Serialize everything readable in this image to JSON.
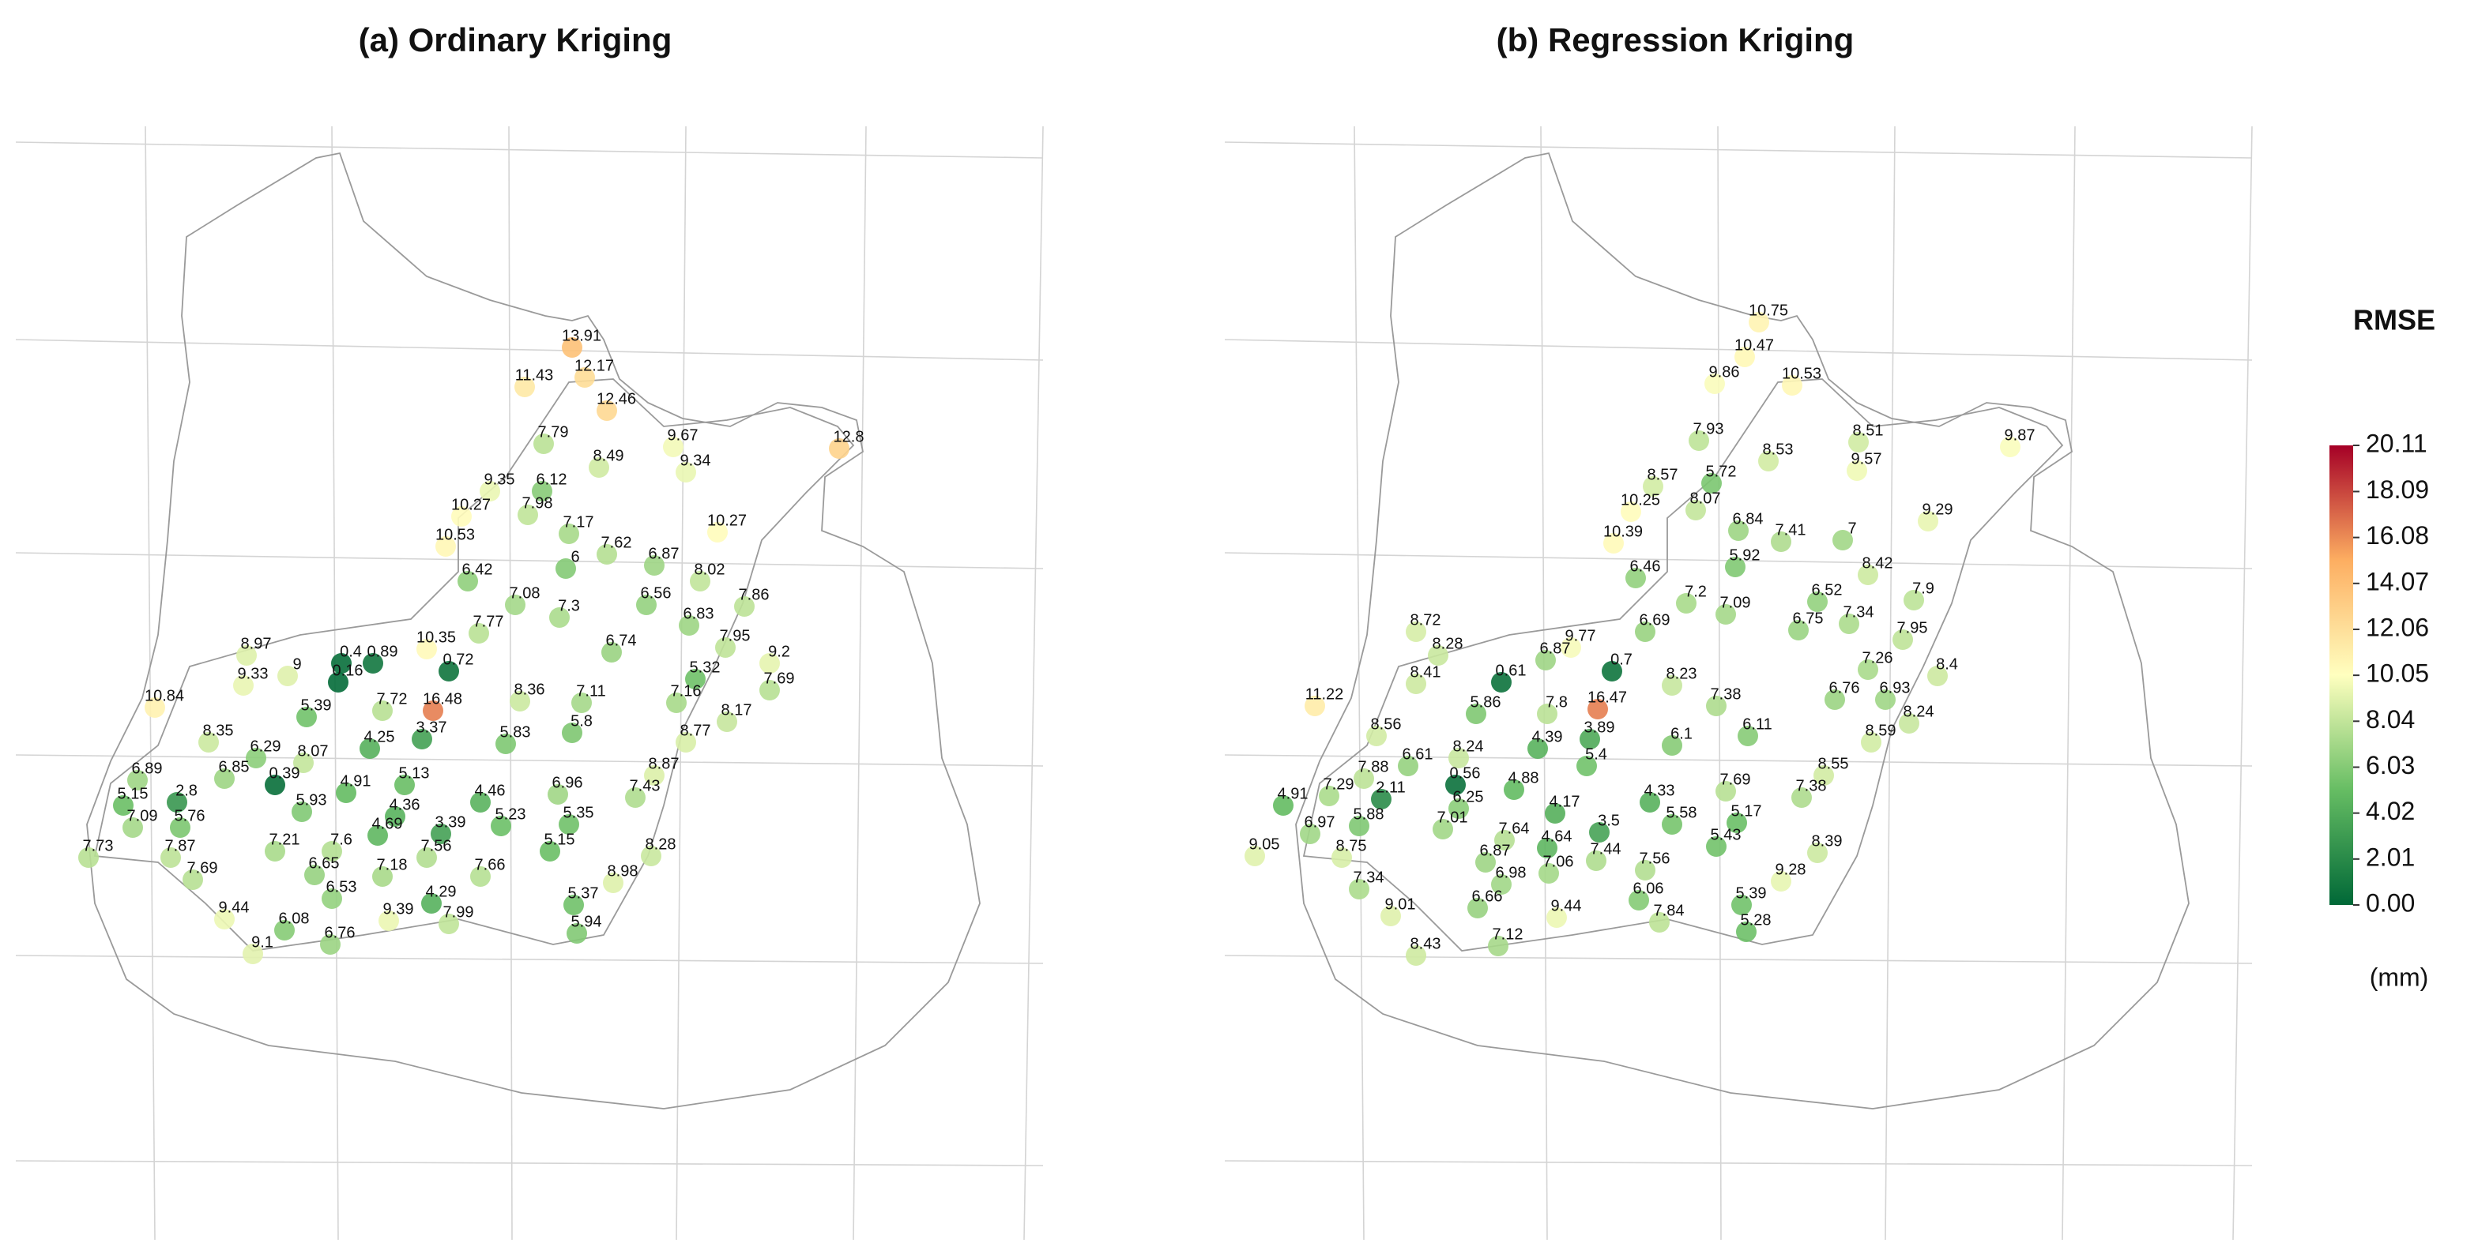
{
  "panels": [
    {
      "title": "(a) Ordinary Kriging",
      "values": [
        13.91,
        11.43,
        12.17,
        12.46,
        12.8,
        9.67,
        9.34,
        7.79,
        8.49,
        9.35,
        6.12,
        7.98,
        10.27,
        10.27,
        7.17,
        10.53,
        7.62,
        6.87,
        6,
        6.42,
        8.02,
        7.08,
        7.3,
        6.56,
        7.86,
        6.83,
        7.77,
        8.97,
        9.33,
        9,
        0.4,
        0.89,
        0.16,
        10.35,
        0.72,
        6.74,
        7.95,
        9.2,
        5.32,
        7.69,
        10.84,
        7.72,
        16.48,
        8.36,
        7.11,
        7.16,
        8.35,
        5.39,
        3.37,
        4.25,
        5.83,
        5.8,
        8.17,
        8.77,
        6.29,
        8.07,
        6.85,
        0.39,
        6.89,
        5.93,
        4.91,
        5.13,
        8.87,
        7.43,
        2.8,
        5.15,
        6.96,
        4.46,
        4.36,
        7.09,
        5.76,
        5.23,
        5.35,
        4.69,
        3.39,
        7.21,
        7.6,
        7.56,
        5.15,
        8.28,
        7.73,
        7.87,
        6.65,
        7.18,
        7.66,
        8.98,
        7.69,
        6.53,
        5.37,
        4.29,
        9.44,
        9.39,
        7.99,
        6.08,
        5.94,
        9.1,
        6.76
      ]
    },
    {
      "title": "(b) Regression Kriging",
      "values": [
        10.75,
        10.47,
        9.86,
        10.53,
        9.87,
        7.93,
        8.51,
        8.53,
        9.57,
        8.57,
        5.72,
        10.25,
        8.07,
        9.29,
        6.84,
        7.41,
        10.39,
        7,
        5.92,
        6.46,
        8.42,
        6.52,
        7.9,
        7.2,
        7.09,
        7.34,
        6.75,
        6.69,
        8.72,
        8.28,
        9.77,
        6.87,
        0.61,
        0.7,
        7.95,
        8.41,
        7.26,
        6.93,
        8.4,
        8.23,
        11.22,
        5.86,
        7.8,
        16.47,
        7.38,
        6.76,
        8.56,
        4.39,
        3.89,
        6.1,
        6.11,
        8.24,
        8.59,
        8.24,
        6.61,
        5.4,
        8.55,
        7.88,
        0.56,
        7.38,
        4.88,
        7.69,
        4.91,
        7.29,
        2.11,
        6.25,
        4.17,
        4.33,
        6.97,
        5.88,
        3.5,
        5.58,
        5.17,
        7.01,
        7.64,
        4.64,
        5.43,
        9.05,
        8.75,
        6.87,
        7.44,
        7.56,
        8.39,
        7.06,
        6.98,
        9.28,
        7.34,
        6.06,
        5.39,
        9.01,
        6.66,
        9.44,
        7.84,
        5.28,
        7.12,
        8.43
      ]
    }
  ],
  "legend": {
    "title": "RMSE",
    "unit": "(mm)",
    "clim": [
      0,
      20.11
    ],
    "ticks": [
      20.11,
      18.09,
      16.08,
      14.07,
      12.06,
      10.05,
      8.04,
      6.03,
      4.02,
      2.01,
      {
        "value": 0,
        "label": "0.00"
      }
    ]
  }
}
